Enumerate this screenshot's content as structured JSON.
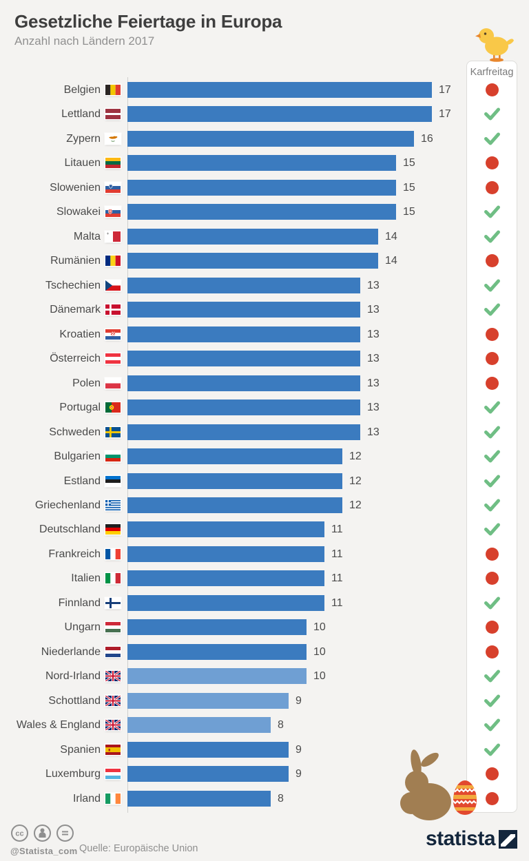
{
  "header": {
    "title": "Gesetzliche Feiertage in Europa",
    "subtitle": "Anzahl nach Ländern 2017"
  },
  "legend": {
    "title": "Karfreitag",
    "yes_symbol": "green-check",
    "no_symbol": "red-dot"
  },
  "chart_data": {
    "type": "bar",
    "orientation": "horizontal",
    "title": "Gesetzliche Feiertage in Europa",
    "subtitle": "Anzahl nach Ländern 2017",
    "xlim": [
      0,
      17
    ],
    "legend_column": "Karfreitag",
    "rows": [
      {
        "country": "Belgien",
        "flag": "belgium",
        "value": 17,
        "karfreitag": false,
        "light_bar": false
      },
      {
        "country": "Lettland",
        "flag": "latvia",
        "value": 17,
        "karfreitag": true,
        "light_bar": false
      },
      {
        "country": "Zypern",
        "flag": "cyprus",
        "value": 16,
        "karfreitag": true,
        "light_bar": false
      },
      {
        "country": "Litauen",
        "flag": "lithuania",
        "value": 15,
        "karfreitag": false,
        "light_bar": false
      },
      {
        "country": "Slowenien",
        "flag": "slovenia",
        "value": 15,
        "karfreitag": false,
        "light_bar": false
      },
      {
        "country": "Slowakei",
        "flag": "slovakia",
        "value": 15,
        "karfreitag": true,
        "light_bar": false
      },
      {
        "country": "Malta",
        "flag": "malta",
        "value": 14,
        "karfreitag": true,
        "light_bar": false
      },
      {
        "country": "Rumänien",
        "flag": "romania",
        "value": 14,
        "karfreitag": false,
        "light_bar": false
      },
      {
        "country": "Tschechien",
        "flag": "czechia",
        "value": 13,
        "karfreitag": true,
        "light_bar": false
      },
      {
        "country": "Dänemark",
        "flag": "denmark",
        "value": 13,
        "karfreitag": true,
        "light_bar": false
      },
      {
        "country": "Kroatien",
        "flag": "croatia",
        "value": 13,
        "karfreitag": false,
        "light_bar": false
      },
      {
        "country": "Österreich",
        "flag": "austria",
        "value": 13,
        "karfreitag": false,
        "light_bar": false
      },
      {
        "country": "Polen",
        "flag": "poland",
        "value": 13,
        "karfreitag": false,
        "light_bar": false
      },
      {
        "country": "Portugal",
        "flag": "portugal",
        "value": 13,
        "karfreitag": true,
        "light_bar": false
      },
      {
        "country": "Schweden",
        "flag": "sweden",
        "value": 13,
        "karfreitag": true,
        "light_bar": false
      },
      {
        "country": "Bulgarien",
        "flag": "bulgaria",
        "value": 12,
        "karfreitag": true,
        "light_bar": false
      },
      {
        "country": "Estland",
        "flag": "estonia",
        "value": 12,
        "karfreitag": true,
        "light_bar": false
      },
      {
        "country": "Griechenland",
        "flag": "greece",
        "value": 12,
        "karfreitag": true,
        "light_bar": false
      },
      {
        "country": "Deutschland",
        "flag": "germany",
        "value": 11,
        "karfreitag": true,
        "light_bar": false
      },
      {
        "country": "Frankreich",
        "flag": "france",
        "value": 11,
        "karfreitag": false,
        "light_bar": false
      },
      {
        "country": "Italien",
        "flag": "italy",
        "value": 11,
        "karfreitag": false,
        "light_bar": false
      },
      {
        "country": "Finnland",
        "flag": "finland",
        "value": 11,
        "karfreitag": true,
        "light_bar": false
      },
      {
        "country": "Ungarn",
        "flag": "hungary",
        "value": 10,
        "karfreitag": false,
        "light_bar": false
      },
      {
        "country": "Niederlande",
        "flag": "netherlands",
        "value": 10,
        "karfreitag": false,
        "light_bar": false
      },
      {
        "country": "Nord-Irland",
        "flag": "uk",
        "value": 10,
        "karfreitag": true,
        "light_bar": true
      },
      {
        "country": "Schottland",
        "flag": "uk",
        "value": 9,
        "karfreitag": true,
        "light_bar": true
      },
      {
        "country": "Wales & England",
        "flag": "uk",
        "value": 8,
        "karfreitag": true,
        "light_bar": true
      },
      {
        "country": "Spanien",
        "flag": "spain",
        "value": 9,
        "karfreitag": true,
        "light_bar": false
      },
      {
        "country": "Luxemburg",
        "flag": "luxembourg",
        "value": 9,
        "karfreitag": false,
        "light_bar": false
      },
      {
        "country": "Irland",
        "flag": "ireland",
        "value": 8,
        "karfreitag": false,
        "light_bar": false
      }
    ],
    "source": "Quelle: Europäische Union"
  },
  "colors": {
    "bar": "#3b7bbf",
    "bar_light": "#6f9fd3",
    "no_dot": "#d7402c",
    "yes_check": "#6fbe84",
    "background": "#f4f3f1",
    "brand_navy": "#13263c"
  },
  "footer": {
    "handle": "@Statista_com",
    "source": "Quelle: Europäische Union",
    "brand": "statista"
  }
}
